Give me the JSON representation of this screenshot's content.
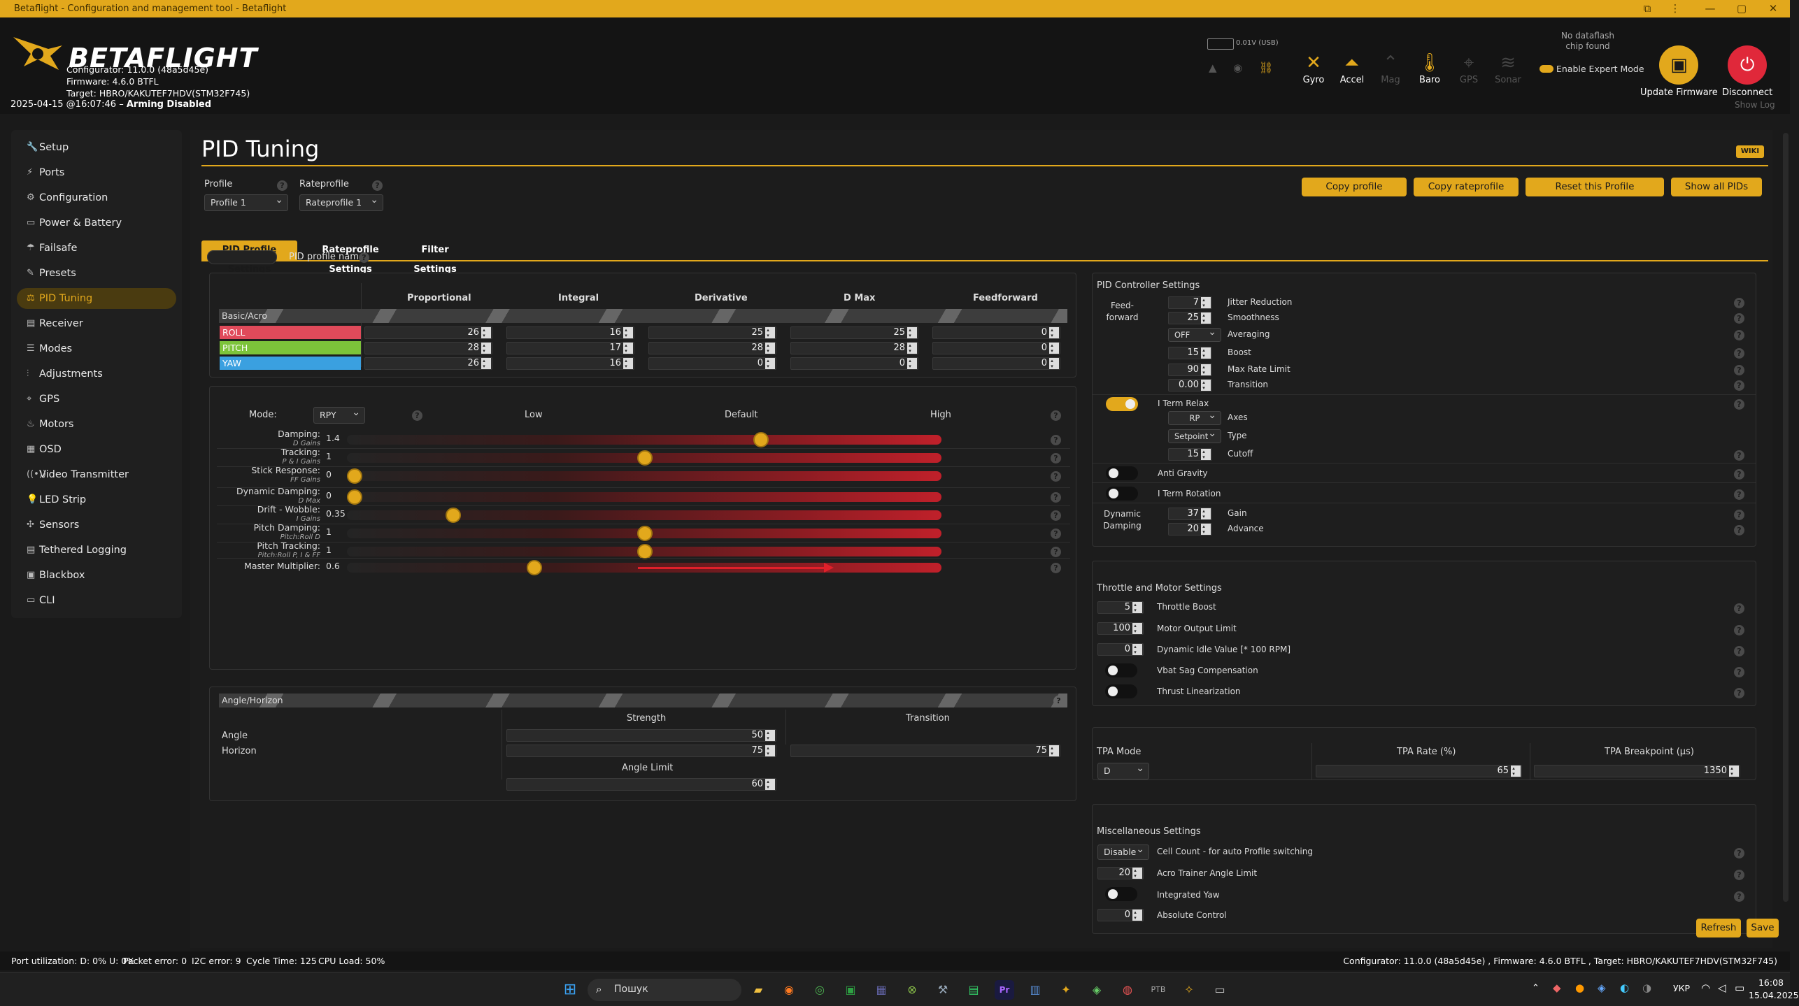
{
  "window": {
    "title": "Betaflight - Configuration and management tool - Betaflight"
  },
  "header": {
    "brand": "BETAFLIGHT",
    "configurator": "Configurator: 11.0.0 (48a5d45e)",
    "firmware": "Firmware: 4.6.0 BTFL",
    "target": "Target: HBRO/KAKUTEF7HDV(STM32F745)",
    "status_time": "2025-04-15 @16:07:46 –",
    "status_arming": "Arming Disabled",
    "battery": "0.01V (USB)",
    "dataflash": "No dataflash chip found",
    "expert_mode": "Enable Expert Mode",
    "update_firmware": "Update Firmware",
    "disconnect": "Disconnect",
    "show_log": "Show Log",
    "sensors": [
      {
        "label": "Gyro",
        "icon": "gyro-icon",
        "active": true
      },
      {
        "label": "Accel",
        "icon": "accel-icon",
        "active": true
      },
      {
        "label": "Mag",
        "icon": "mag-icon",
        "active": false
      },
      {
        "label": "Baro",
        "icon": "baro-icon",
        "active": true
      },
      {
        "label": "GPS",
        "icon": "gps-icon",
        "active": false
      },
      {
        "label": "Sonar",
        "icon": "sonar-icon",
        "active": false
      }
    ]
  },
  "sidebar": {
    "items": [
      {
        "label": "Setup",
        "icon": "wrench-icon"
      },
      {
        "label": "Ports",
        "icon": "plug-icon"
      },
      {
        "label": "Configuration",
        "icon": "gear-icon"
      },
      {
        "label": "Power & Battery",
        "icon": "battery-icon"
      },
      {
        "label": "Failsafe",
        "icon": "failsafe-icon"
      },
      {
        "label": "Presets",
        "icon": "presets-icon"
      },
      {
        "label": "PID Tuning",
        "icon": "pid-tuning-icon",
        "active": true
      },
      {
        "label": "Receiver",
        "icon": "receiver-icon"
      },
      {
        "label": "Modes",
        "icon": "modes-icon"
      },
      {
        "label": "Adjustments",
        "icon": "adjustments-icon"
      },
      {
        "label": "GPS",
        "icon": "gps-icon"
      },
      {
        "label": "Motors",
        "icon": "motors-icon"
      },
      {
        "label": "OSD",
        "icon": "osd-icon"
      },
      {
        "label": "Video Transmitter",
        "icon": "vtx-icon"
      },
      {
        "label": "LED Strip",
        "icon": "led-icon"
      },
      {
        "label": "Sensors",
        "icon": "sensors-icon"
      },
      {
        "label": "Tethered Logging",
        "icon": "tethered-icon"
      },
      {
        "label": "Blackbox",
        "icon": "blackbox-icon"
      },
      {
        "label": "CLI",
        "icon": "cli-icon"
      }
    ]
  },
  "page": {
    "title": "PID Tuning",
    "wiki": "WIKI",
    "profile_label": "Profile",
    "profile_value": "Profile 1",
    "rateprofile_label": "Rateprofile",
    "rateprofile_value": "Rateprofile 1",
    "buttons": {
      "copy_profile": "Copy profile",
      "copy_rateprofile": "Copy rateprofile",
      "reset_profile": "Reset this Profile",
      "show_all_pids": "Show all PIDs",
      "refresh": "Refresh",
      "save": "Save"
    },
    "tabs": [
      "PID Profile Settings",
      "Rateprofile Settings",
      "Filter Settings"
    ],
    "pid_profile_name": "PID profile name"
  },
  "pids": {
    "headers": [
      "Proportional",
      "Integral",
      "Derivative",
      "D Max",
      "Feedforward"
    ],
    "group": "Basic/Acro",
    "rows": [
      {
        "name": "ROLL",
        "color": "#e04a5a",
        "values": [
          "26",
          "16",
          "25",
          "25",
          "0"
        ]
      },
      {
        "name": "PITCH",
        "color": "#7cc33a",
        "values": [
          "28",
          "17",
          "28",
          "28",
          "0"
        ]
      },
      {
        "name": "YAW",
        "color": "#3aa0e0",
        "values": [
          "26",
          "16",
          "0",
          "0",
          "0"
        ]
      }
    ]
  },
  "sliders": {
    "mode_label": "Mode:",
    "mode_value": "RPY",
    "low": "Low",
    "default": "Default",
    "high": "High",
    "items": [
      {
        "label": "Damping:",
        "sub": "D Gains",
        "value": "1.4",
        "pos": 0.7
      },
      {
        "label": "Tracking:",
        "sub": "P & I Gains",
        "value": "1",
        "pos": 0.5
      },
      {
        "label": "Stick Response:",
        "sub": "FF Gains",
        "value": "0",
        "pos": 0
      },
      {
        "label": "Dynamic Damping:",
        "sub": "D Max",
        "value": "0",
        "pos": 0
      },
      {
        "label": "Drift - Wobble:",
        "sub": "I Gains",
        "value": "0.35",
        "pos": 0.17
      },
      {
        "label": "Pitch Damping:",
        "sub": "Pitch:Roll D",
        "value": "1",
        "pos": 0.5
      },
      {
        "label": "Pitch Tracking:",
        "sub": "Pitch:Roll P, I & FF",
        "value": "1",
        "pos": 0.5
      },
      {
        "label": "Master Multiplier:",
        "sub": "",
        "value": "0.6",
        "pos": 0.31
      }
    ]
  },
  "angle": {
    "group": "Angle/Horizon",
    "strength": "Strength",
    "transition": "Transition",
    "angle_label": "Angle",
    "angle_value": "50",
    "horizon_label": "Horizon",
    "horizon_value": "75",
    "horizon_transition": "75",
    "angle_limit_label": "Angle Limit",
    "angle_limit_value": "60"
  },
  "pid_controller": {
    "title": "PID Controller Settings",
    "feedforward_label": "Feed-forward",
    "jitter": {
      "label": "Jitter Reduction",
      "value": "7"
    },
    "smoothness": {
      "label": "Smoothness",
      "value": "25"
    },
    "averaging": {
      "label": "Averaging",
      "value": "OFF"
    },
    "boost": {
      "label": "Boost",
      "value": "15"
    },
    "max_rate_limit": {
      "label": "Max Rate Limit",
      "value": "90"
    },
    "transition": {
      "label": "Transition",
      "value": "0.00"
    },
    "iterm_relax": {
      "label": "I Term Relax",
      "on": true
    },
    "axes": {
      "label": "Axes",
      "value": "RP"
    },
    "type": {
      "label": "Type",
      "value": "Setpoint"
    },
    "cutoff": {
      "label": "Cutoff",
      "value": "15"
    },
    "anti_gravity": {
      "label": "Anti Gravity",
      "on": false
    },
    "iterm_rotation": {
      "label": "I Term Rotation",
      "on": false
    },
    "dynamic_damping": "Dynamic Damping",
    "gain": {
      "label": "Gain",
      "value": "37"
    },
    "advance": {
      "label": "Advance",
      "value": "20"
    }
  },
  "throttle": {
    "title": "Throttle and Motor Settings",
    "throttle_boost": {
      "label": "Throttle Boost",
      "value": "5"
    },
    "motor_output_limit": {
      "label": "Motor Output Limit",
      "value": "100"
    },
    "dynamic_idle": {
      "label": "Dynamic Idle Value [* 100 RPM]",
      "value": "0"
    },
    "vbat_sag": {
      "label": "Vbat Sag Compensation",
      "on": false
    },
    "thrust_lin": {
      "label": "Thrust Linearization",
      "on": false
    }
  },
  "tpa": {
    "mode_label": "TPA Mode",
    "mode_value": "D",
    "rate_label": "TPA Rate (%)",
    "rate_value": "65",
    "breakpoint_label": "TPA Breakpoint (µs)",
    "breakpoint_value": "1350"
  },
  "misc": {
    "title": "Miscellaneous Settings",
    "cell_count": {
      "label": "Cell Count - for auto Profile switching",
      "value": "Disable"
    },
    "acro_trainer": {
      "label": "Acro Trainer Angle Limit",
      "value": "20"
    },
    "integrated_yaw": {
      "label": "Integrated Yaw",
      "on": false
    },
    "absolute_control": {
      "label": "Absolute Control",
      "value": "0"
    }
  },
  "statusbar": {
    "port": "Port utilization: D: 0% U: 0%",
    "packet": "Packet error: 0",
    "i2c": "I2C error: 9",
    "cycle": "Cycle Time: 125",
    "cpu": "CPU Load: 50%",
    "right": "Configurator: 11.0.0 (48a5d45e) , Firmware: 4.6.0 BTFL , Target: HBRO/KAKUTEF7HDV(STM32F745)"
  },
  "taskbar": {
    "search_placeholder": "Пошук",
    "lang": "УКР",
    "time": "16:08",
    "date": "15.04.2025"
  }
}
